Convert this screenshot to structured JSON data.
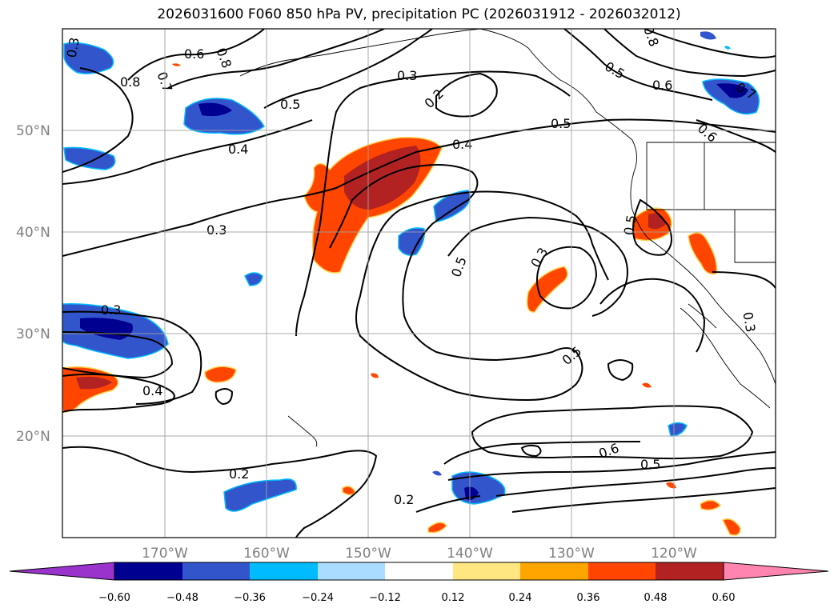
{
  "title": "2026031600 F060 850 hPa PV, precipitation PC (2026031912 - 2026032012)",
  "lat_labels": [
    "50°N",
    "40°N",
    "30°N",
    "20°N"
  ],
  "lon_labels": [
    "170°W",
    "160°W",
    "150°W",
    "140°W",
    "130°W",
    "120°W"
  ],
  "contour_labels": [
    "0.6",
    "0.8",
    "0.7",
    "0.8",
    "0.5",
    "0.4",
    "0.3",
    "0.2",
    "0.3",
    "0.5",
    "0.4",
    "0.5",
    "0.6",
    "0.7",
    "0.6",
    "0.5",
    "0.3",
    "0.3",
    "0.5",
    "0.3",
    "0.4",
    "0.2",
    "0.2",
    "0.6",
    "0.5",
    "0.8",
    "0.5",
    "0.3"
  ],
  "colorbar": {
    "ticks": [
      "−0.60",
      "−0.48",
      "−0.36",
      "−0.24",
      "−0.12",
      "0.12",
      "0.24",
      "0.36",
      "0.48",
      "0.60"
    ],
    "colors": [
      "#9933cc",
      "#000090",
      "#3355cc",
      "#00bbff",
      "#aadcff",
      "#ffffff",
      "#ffe680",
      "#ffa500",
      "#ff4500",
      "#b22222",
      "#ff85b0"
    ]
  }
}
